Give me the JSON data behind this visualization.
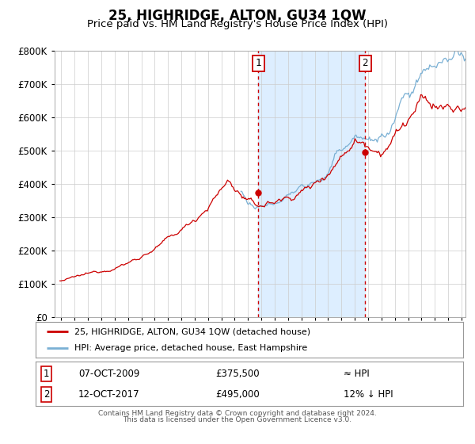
{
  "title": "25, HIGHRIDGE, ALTON, GU34 1QW",
  "subtitle": "Price paid vs. HM Land Registry's House Price Index (HPI)",
  "title_fontsize": 12,
  "subtitle_fontsize": 9.5,
  "background_color": "#ffffff",
  "plot_bg_color": "#ffffff",
  "grid_color": "#cccccc",
  "hpi_line_color": "#7ab0d4",
  "price_line_color": "#cc0000",
  "sale1_date": 2009.77,
  "sale1_price": 375500,
  "sale2_date": 2017.78,
  "sale2_price": 495000,
  "shade_color": "#ddeeff",
  "vline_color": "#cc0000",
  "legend1_label": "25, HIGHRIDGE, ALTON, GU34 1QW (detached house)",
  "legend2_label": "HPI: Average price, detached house, East Hampshire",
  "note1_num": "1",
  "note1_date": "07-OCT-2009",
  "note1_price": "£375,500",
  "note1_rel": "≈ HPI",
  "note2_num": "2",
  "note2_date": "12-OCT-2017",
  "note2_price": "£495,000",
  "note2_rel": "12% ↓ HPI",
  "footer1": "Contains HM Land Registry data © Crown copyright and database right 2024.",
  "footer2": "This data is licensed under the Open Government Licence v3.0.",
  "ylim_max": 800000,
  "xlim_min": 1994.5,
  "xlim_max": 2025.3
}
